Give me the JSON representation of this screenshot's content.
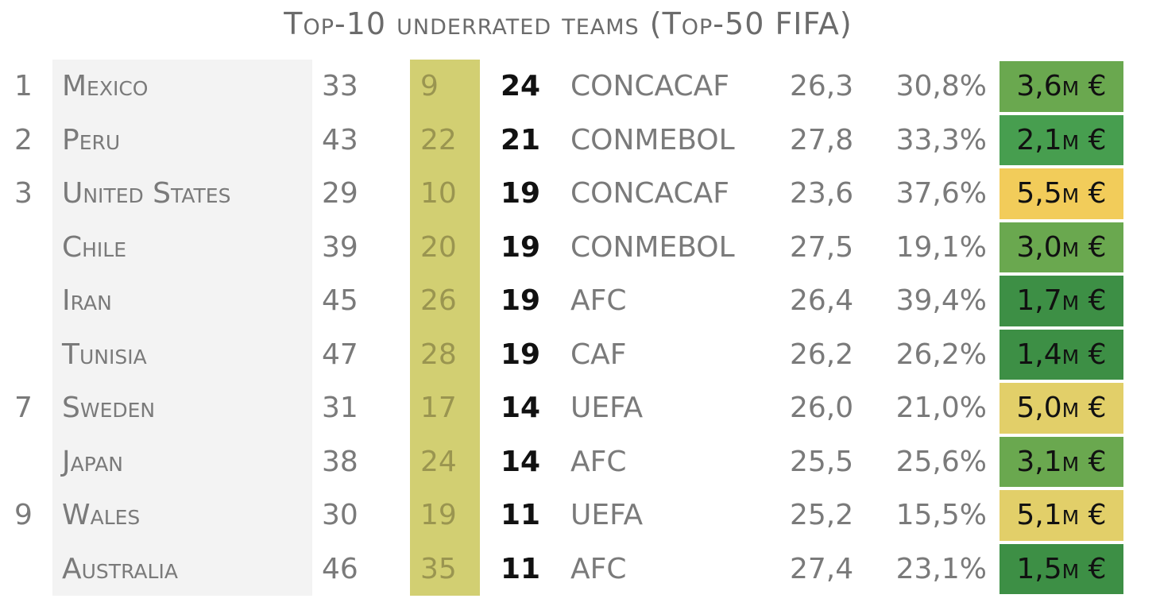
{
  "title": "Top-10 underrated teams (Top-50 FIFA)",
  "chart_data": {
    "type": "table",
    "title": "Top-10 underrated teams (Top-50 FIFA)",
    "rows": [
      {
        "rank": "1",
        "country": "Mexico",
        "fifa": "33",
        "elo": "9",
        "diff": "24",
        "confederation": "CONCACAF",
        "age": "26,3",
        "pct": "30,8%",
        "value": "3,6m €",
        "value_color": "#6aa84f"
      },
      {
        "rank": "2",
        "country": "Peru",
        "fifa": "43",
        "elo": "22",
        "diff": "21",
        "confederation": "CONMEBOL",
        "age": "27,8",
        "pct": "33,3%",
        "value": "2,1m €",
        "value_color": "#479e4f"
      },
      {
        "rank": "3",
        "country": "United States",
        "fifa": "29",
        "elo": "10",
        "diff": "19",
        "confederation": "CONCACAF",
        "age": "23,6",
        "pct": "37,6%",
        "value": "5,5m €",
        "value_color": "#f2cc5a"
      },
      {
        "rank": "",
        "country": "Chile",
        "fifa": "39",
        "elo": "20",
        "diff": "19",
        "confederation": "CONMEBOL",
        "age": "27,5",
        "pct": "19,1%",
        "value": "3,0m €",
        "value_color": "#6aa84f"
      },
      {
        "rank": "",
        "country": "Iran",
        "fifa": "45",
        "elo": "26",
        "diff": "19",
        "confederation": "AFC",
        "age": "26,4",
        "pct": "39,4%",
        "value": "1,7m €",
        "value_color": "#3d8f45"
      },
      {
        "rank": "",
        "country": "Tunisia",
        "fifa": "47",
        "elo": "28",
        "diff": "19",
        "confederation": "CAF",
        "age": "26,2",
        "pct": "26,2%",
        "value": "1,4m €",
        "value_color": "#3d8f45"
      },
      {
        "rank": "7",
        "country": "Sweden",
        "fifa": "31",
        "elo": "17",
        "diff": "14",
        "confederation": "UEFA",
        "age": "26,0",
        "pct": "21,0%",
        "value": "5,0m €",
        "value_color": "#e2cf69"
      },
      {
        "rank": "",
        "country": "Japan",
        "fifa": "38",
        "elo": "24",
        "diff": "14",
        "confederation": "AFC",
        "age": "25,5",
        "pct": "25,6%",
        "value": "3,1m €",
        "value_color": "#6aa84f"
      },
      {
        "rank": "9",
        "country": "Wales",
        "fifa": "30",
        "elo": "19",
        "diff": "11",
        "confederation": "UEFA",
        "age": "25,2",
        "pct": "15,5%",
        "value": "5,1m €",
        "value_color": "#e2cf69"
      },
      {
        "rank": "",
        "country": "Australia",
        "fifa": "46",
        "elo": "35",
        "diff": "11",
        "confederation": "AFC",
        "age": "27,4",
        "pct": "23,1%",
        "value": "1,5m €",
        "value_color": "#3d8f45"
      }
    ]
  }
}
